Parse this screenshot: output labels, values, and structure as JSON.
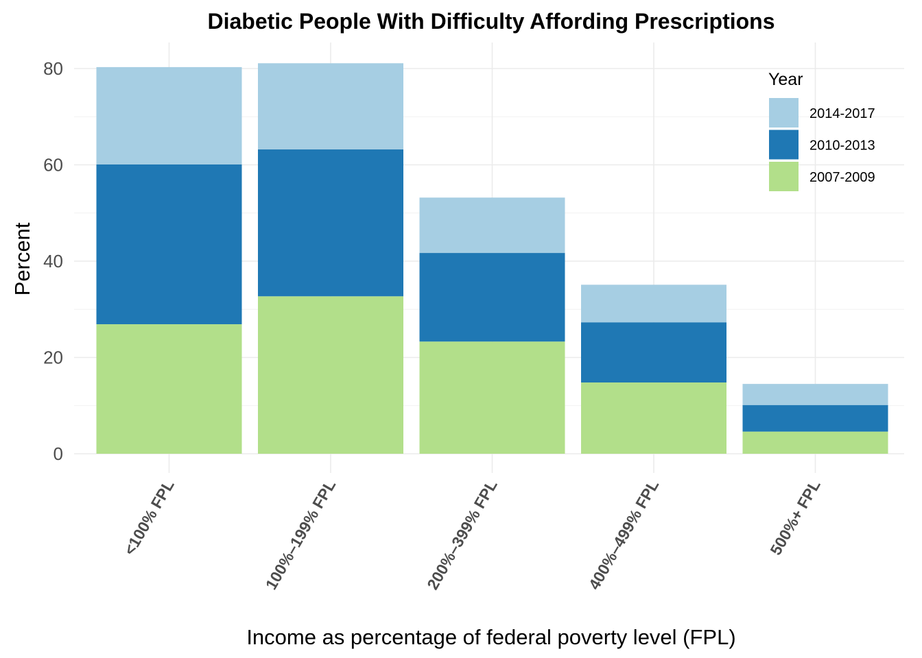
{
  "chart_data": {
    "type": "bar",
    "stacked": true,
    "title": "Diabetic People With Difficulty Affording Prescriptions",
    "xlabel": "Income as percentage of federal poverty level (FPL)",
    "ylabel": "Percent",
    "ylim": [
      0,
      83
    ],
    "yticks": [
      0,
      20,
      40,
      60,
      80
    ],
    "grid": true,
    "categories": [
      "<100% FPL",
      "100%–199% FPL",
      "200%–399% FPL",
      "400%–499% FPL",
      "500%+ FPL"
    ],
    "series": [
      {
        "name": "2007-2009",
        "color": "#b2df8a",
        "values": [
          26.9,
          32.7,
          23.3,
          14.8,
          4.6
        ]
      },
      {
        "name": "2010-2013",
        "color": "#1f78b4",
        "values": [
          33.2,
          30.5,
          18.4,
          12.5,
          5.5
        ]
      },
      {
        "name": "2014-2017",
        "color": "#a6cee3",
        "values": [
          20.2,
          17.9,
          11.5,
          7.8,
          4.4
        ]
      }
    ],
    "legend": {
      "title": "Year",
      "placement": "top-right",
      "order": [
        "2014-2017",
        "2010-2013",
        "2007-2009"
      ]
    }
  }
}
